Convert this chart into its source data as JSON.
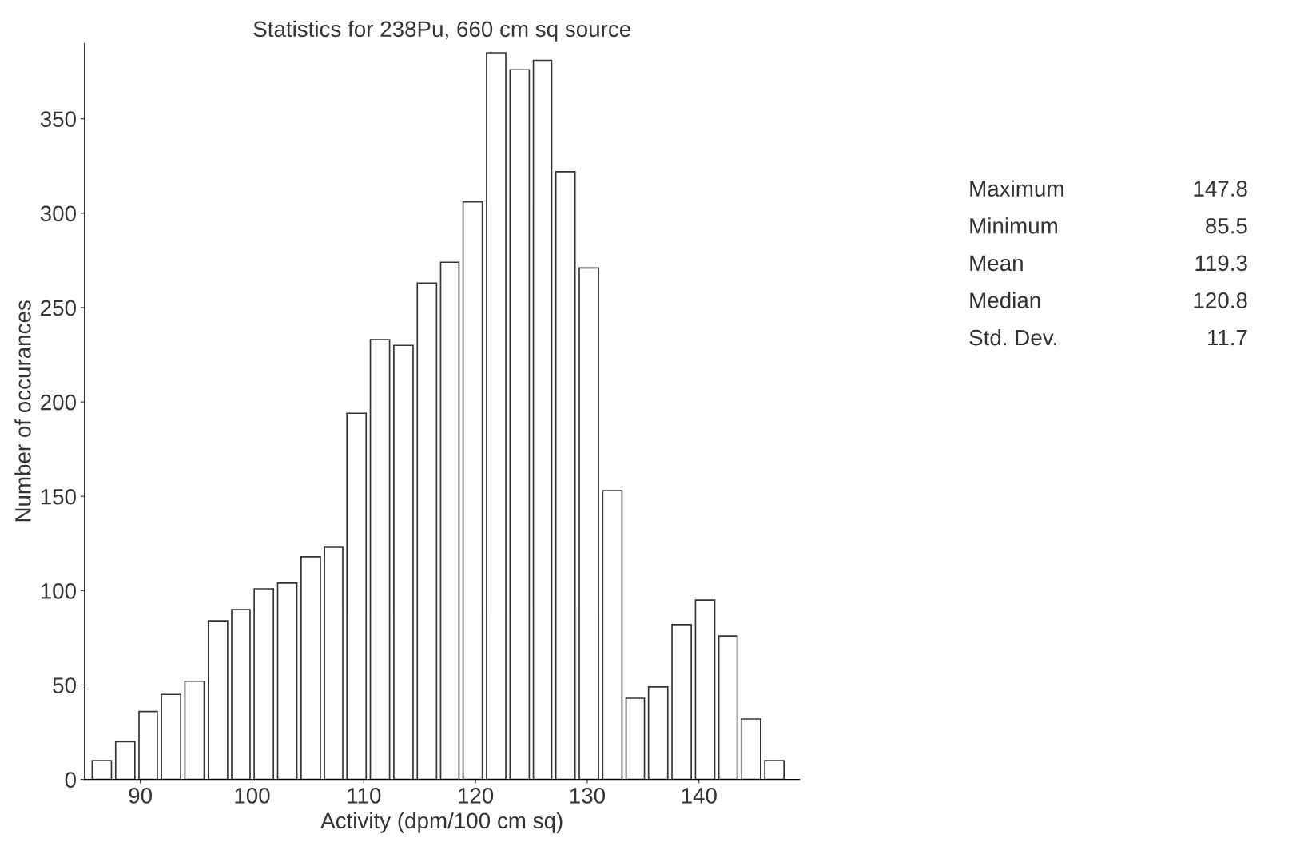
{
  "chart_data": {
    "type": "histogram",
    "title": "Statistics for 238Pu, 660 cm sq source",
    "xlabel": "Activity (dpm/100 cm sq)",
    "ylabel": "Number of occurances",
    "bins": [
      85.5,
      87.6,
      89.7,
      91.7,
      93.8,
      95.9,
      98.0,
      100.0,
      102.1,
      104.2,
      106.3,
      108.3,
      110.4,
      112.5,
      114.6,
      116.7,
      118.7,
      120.8,
      122.9,
      125.0,
      127.0,
      129.1,
      131.2,
      133.3,
      135.3,
      137.4,
      139.5,
      141.6,
      143.6,
      145.7,
      147.8
    ],
    "values": [
      10,
      20,
      36,
      45,
      52,
      84,
      90,
      101,
      104,
      118,
      123,
      194,
      233,
      230,
      263,
      274,
      306,
      385,
      376,
      381,
      322,
      271,
      153,
      43,
      49,
      82,
      95,
      76,
      32,
      10
    ],
    "color": "#ffffff",
    "xlim": [
      85,
      149
    ],
    "xticks": [
      90,
      100,
      110,
      120,
      130,
      140
    ],
    "ylim": [
      0,
      390
    ],
    "yticks": [
      0,
      50,
      100,
      150,
      200,
      250,
      300,
      350
    ],
    "grid": false,
    "annotations": [
      "Maximum",
      "147.8",
      "Minimum",
      "85.5",
      "Mean",
      "119.3",
      "Median",
      "120.8",
      "Std. Dev.",
      "11.7"
    ]
  }
}
